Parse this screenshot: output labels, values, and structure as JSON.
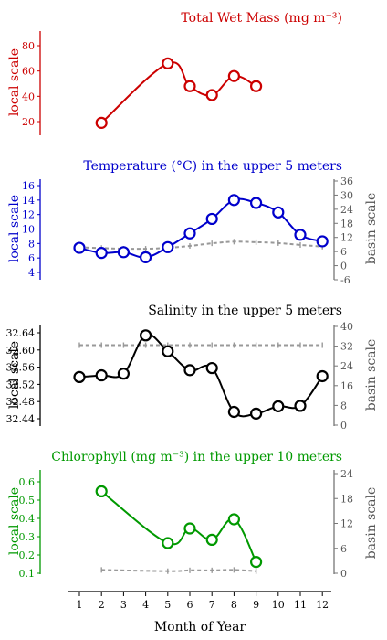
{
  "chart_data": [
    {
      "type": "line",
      "title": "Total Wet Mass (mg m⁻³)",
      "ylabel": "local scale",
      "ylim": [
        10,
        90
      ],
      "yticks": [
        20,
        40,
        60,
        80
      ],
      "color": "#cc0000",
      "series": [
        {
          "values": [
            [
              2,
              19
            ],
            [
              5,
              66
            ],
            [
              6,
              48
            ],
            [
              7,
              41
            ],
            [
              8,
              56
            ],
            [
              9,
              48
            ]
          ]
        }
      ]
    },
    {
      "type": "line",
      "title": "Temperature (°C) in the upper 5 meters",
      "ylabel": "local scale",
      "ylabel_right": "basin scale",
      "ylim": [
        3,
        17
      ],
      "yticks": [
        4,
        6,
        8,
        10,
        12,
        14,
        16
      ],
      "ylim_right": [
        -6,
        36
      ],
      "yticks_right": [
        -6,
        0,
        6,
        12,
        18,
        24,
        30,
        36
      ],
      "color": "#0000cc",
      "series": [
        {
          "values": [
            [
              1,
              7.4
            ],
            [
              2,
              6.7
            ],
            [
              3,
              6.8
            ],
            [
              4,
              6.1
            ],
            [
              5,
              7.5
            ],
            [
              6,
              9.4
            ],
            [
              7,
              11.4
            ],
            [
              8,
              14
            ],
            [
              9,
              13.6
            ],
            [
              10,
              12.3
            ],
            [
              11,
              9.2
            ],
            [
              12,
              8.3
            ]
          ]
        },
        {
          "axis": "right",
          "values": [
            [
              1,
              7.8
            ],
            [
              2,
              7.5
            ],
            [
              3,
              7.2
            ],
            [
              4,
              7.2
            ],
            [
              5,
              7.6
            ],
            [
              6,
              8.4
            ],
            [
              7,
              9.5
            ],
            [
              8,
              10.2
            ],
            [
              9,
              10
            ],
            [
              10,
              9.6
            ],
            [
              11,
              8.8
            ],
            [
              12,
              8.1
            ]
          ]
        }
      ]
    },
    {
      "type": "line",
      "title": "Salinity in the upper 5 meters",
      "ylabel": "local scale",
      "ylabel_right": "basin scale",
      "ylim": [
        32.42,
        32.66
      ],
      "yticks": [
        32.44,
        32.48,
        32.52,
        32.56,
        32.6,
        32.64
      ],
      "ylim_right": [
        0,
        40
      ],
      "yticks_right": [
        0,
        8,
        16,
        24,
        32,
        40
      ],
      "color": "#000000",
      "series": [
        {
          "values": [
            [
              1,
              32.537
            ],
            [
              2,
              32.541
            ],
            [
              3,
              32.545
            ],
            [
              4,
              32.634
            ],
            [
              5,
              32.597
            ],
            [
              6,
              32.553
            ],
            [
              7,
              32.558
            ],
            [
              8,
              32.456
            ],
            [
              9,
              32.452
            ],
            [
              10,
              32.469
            ],
            [
              11,
              32.47
            ],
            [
              12,
              32.539
            ]
          ]
        },
        {
          "axis": "right",
          "values": [
            [
              1,
              32.4
            ],
            [
              2,
              32.4
            ],
            [
              3,
              32.4
            ],
            [
              4,
              32.4
            ],
            [
              5,
              32.4
            ],
            [
              6,
              32.4
            ],
            [
              7,
              32.4
            ],
            [
              8,
              32.4
            ],
            [
              9,
              32.4
            ],
            [
              10,
              32.4
            ],
            [
              11,
              32.4
            ],
            [
              12,
              32.4
            ]
          ]
        }
      ]
    },
    {
      "type": "line",
      "title": "Chlorophyll (mg m⁻³) in the upper 10 meters",
      "ylabel": "local scale",
      "ylabel_right": "basin scale",
      "ylim": [
        0.08,
        0.64
      ],
      "yticks": [
        0.1,
        0.2,
        0.3,
        0.4,
        0.5,
        0.6
      ],
      "ylim_right": [
        0,
        24
      ],
      "yticks_right": [
        0,
        6,
        12,
        18,
        24
      ],
      "color": "#009900",
      "series": [
        {
          "values": [
            [
              2,
              0.548
            ],
            [
              5,
              0.265
            ],
            [
              6,
              0.345
            ],
            [
              7,
              0.283
            ],
            [
              8,
              0.395
            ],
            [
              9,
              0.162
            ]
          ]
        },
        {
          "axis": "right",
          "values": [
            [
              2,
              0.8
            ],
            [
              5,
              0.5
            ],
            [
              6,
              0.7
            ],
            [
              7,
              0.7
            ],
            [
              8,
              0.8
            ],
            [
              9,
              0.5
            ]
          ]
        }
      ]
    }
  ],
  "x_axis": {
    "label": "Month of Year",
    "ticks": [
      1,
      2,
      3,
      4,
      5,
      6,
      7,
      8,
      9,
      10,
      11,
      12
    ]
  }
}
